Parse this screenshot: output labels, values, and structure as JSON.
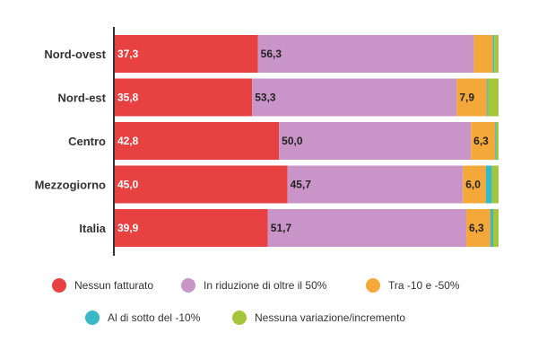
{
  "chart_data": {
    "type": "bar",
    "orientation": "horizontal",
    "stacked": true,
    "title": "",
    "xlabel": "",
    "ylabel": "",
    "xlim": [
      0,
      100
    ],
    "grid": false,
    "legend_position": "bottom",
    "categories": [
      "Nord-ovest",
      "Nord-est",
      "Centro",
      "Mezzogiorno",
      "Italia"
    ],
    "series": [
      {
        "name": "Nessun fatturato",
        "color": "#e84141",
        "values": [
          37.3,
          35.8,
          42.8,
          45.0,
          39.9
        ],
        "labels": [
          "37,3",
          "35,8",
          "42,8",
          "45,0",
          "39,9"
        ]
      },
      {
        "name": "In riduzione di oltre il 50%",
        "color": "#c994c7",
        "values": [
          56.3,
          53.3,
          50.0,
          45.7,
          51.7
        ],
        "labels": [
          "56,3",
          "53,3",
          "50,0",
          "45,7",
          "51,7"
        ]
      },
      {
        "name": "Tra -10 e -50%",
        "color": "#f5a83a",
        "values": [
          4.9,
          7.9,
          6.3,
          6.0,
          6.3
        ],
        "labels": [
          "",
          "7,9",
          "6,3",
          "6,0",
          "6,3"
        ]
      },
      {
        "name": "Al di sotto del -10%",
        "color": "#3ab8c6",
        "values": [
          0.4,
          0.3,
          0.3,
          1.6,
          0.7
        ],
        "labels": [
          "",
          "",
          "",
          "",
          ""
        ]
      },
      {
        "name": "Nessuna variazione/incremento",
        "color": "#a5c63b",
        "values": [
          1.1,
          2.7,
          0.6,
          1.7,
          1.4
        ],
        "labels": [
          "",
          "",
          "",
          "",
          ""
        ]
      }
    ],
    "label_colors": [
      "#ffffff",
      "#222222",
      "#222222",
      "#222222",
      "#222222"
    ]
  }
}
